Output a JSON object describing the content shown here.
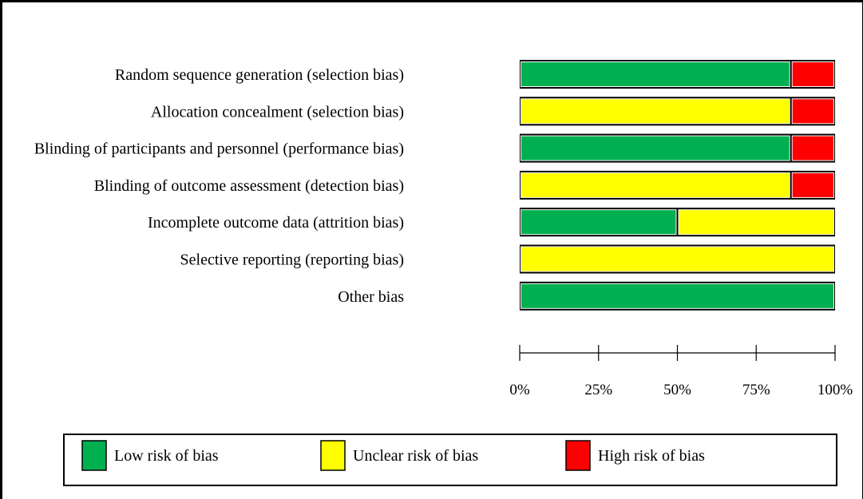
{
  "chart_data": {
    "type": "bar",
    "stacked": true,
    "orientation": "horizontal",
    "categories": [
      "Random sequence generation (selection bias)",
      "Allocation concealment (selection bias)",
      "Blinding of participants and personnel (performance bias)",
      "Blinding of outcome assessment (detection bias)",
      "Incomplete outcome data (attrition bias)",
      "Selective reporting (reporting bias)",
      "Other bias"
    ],
    "series": [
      {
        "name": "Low risk of bias",
        "color": "#00B050",
        "values": [
          86,
          0,
          86,
          0,
          50,
          0,
          100
        ]
      },
      {
        "name": "Unclear risk of bias",
        "color": "#FFFF00",
        "values": [
          0,
          86,
          0,
          86,
          50,
          100,
          0
        ]
      },
      {
        "name": "High risk of bias",
        "color": "#FF0000",
        "values": [
          14,
          14,
          14,
          14,
          0,
          0,
          0
        ]
      }
    ],
    "xticks": [
      "0%",
      "25%",
      "50%",
      "75%",
      "100%"
    ],
    "xlim": [
      0,
      100
    ],
    "legend": "bottom",
    "grid": false
  }
}
